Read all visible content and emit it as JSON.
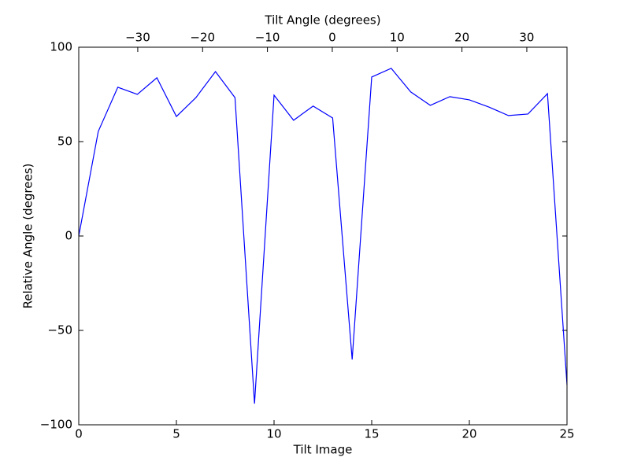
{
  "chart_data": {
    "type": "line",
    "xlabel": "Tilt Image",
    "ylabel": "Relative Angle (degrees)",
    "x2label": "Tilt Angle (degrees)",
    "x": [
      0,
      1,
      2,
      3,
      4,
      5,
      6,
      7,
      8,
      9,
      10,
      11,
      12,
      13,
      14,
      15,
      16,
      17,
      18,
      19,
      20,
      21,
      22,
      23,
      24,
      25
    ],
    "series": [
      {
        "name": "Relative Angle",
        "color": "#0000ff",
        "values": [
          0,
          55.4,
          78.8,
          75,
          83.8,
          63.3,
          73.3,
          87.1,
          73.3,
          -88.8,
          74.6,
          61.3,
          68.8,
          62.5,
          -65.4,
          84.2,
          88.8,
          76.3,
          69.2,
          73.8,
          72.1,
          68.3,
          63.8,
          64.6,
          75.4,
          -78.8
        ]
      }
    ],
    "xlim": [
      0,
      25
    ],
    "xticks": [
      0,
      5,
      10,
      15,
      20,
      25
    ],
    "ylim": [
      -100,
      100
    ],
    "yticks": [
      {
        "value": -100,
        "label": "−100"
      },
      {
        "value": -50,
        "label": "−50"
      },
      0,
      50,
      100
    ],
    "x2lim": [
      -39.1,
      36.2
    ],
    "x2ticks": [
      {
        "value": -30,
        "label": "−30"
      },
      {
        "value": -20,
        "label": "−20"
      },
      {
        "value": -10,
        "label": "−10"
      },
      0,
      10,
      20,
      30
    ],
    "grid": false
  }
}
